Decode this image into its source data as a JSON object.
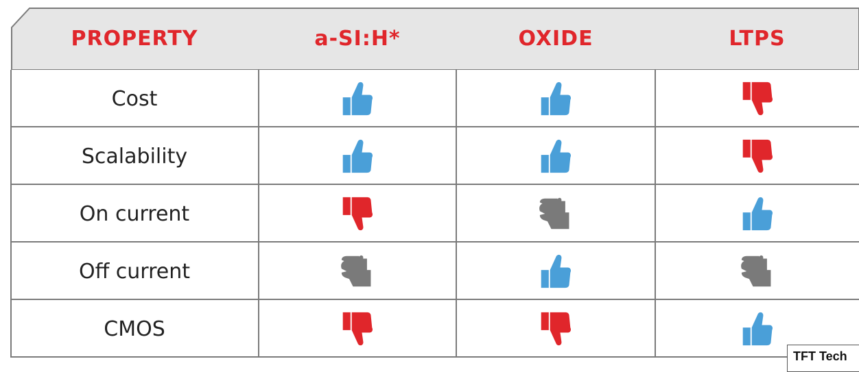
{
  "headers": [
    "PROPERTY",
    "a-SI:H*",
    "OXIDE",
    "LTPS"
  ],
  "rows": [
    {
      "label": "Cost",
      "ratings": [
        "up",
        "up",
        "down"
      ]
    },
    {
      "label": "Scalability",
      "ratings": [
        "up",
        "up",
        "down"
      ]
    },
    {
      "label": "On current",
      "ratings": [
        "down",
        "neutral",
        "up"
      ]
    },
    {
      "label": "Off current",
      "ratings": [
        "neutral",
        "up",
        "neutral"
      ]
    },
    {
      "label": "CMOS",
      "ratings": [
        "down",
        "down",
        "up"
      ]
    }
  ],
  "icons": {
    "up": "thumbs-up-icon",
    "down": "thumbs-down-icon",
    "neutral": "thumbs-sideways-icon"
  },
  "colors": {
    "header_text": "#e0262b",
    "header_bg": "#e6e6e6",
    "up": "#4a9fd8",
    "down": "#e0262b",
    "neutral": "#7a7a7a"
  },
  "caption": "TFT Tech"
}
